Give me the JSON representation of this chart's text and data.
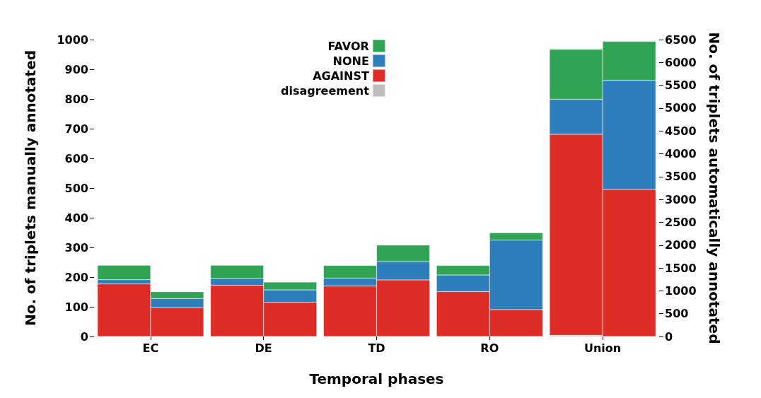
{
  "chart_data": {
    "type": "bar",
    "stacked": true,
    "xlabel": "Temporal phases",
    "ylabel": "No. of triplets manually annotated",
    "y2label": "No. of triplets automatically annotated",
    "categories": [
      "EC",
      "DE",
      "TD",
      "RO",
      "Union"
    ],
    "series": [
      {
        "name": "disagreement",
        "color": "#bdbdbd",
        "values": [
          null,
          null,
          null,
          null,
          4
        ]
      },
      {
        "name": "AGAINST",
        "color": "#de2d26",
        "values": [
          177,
          173,
          170,
          151,
          677
        ]
      },
      {
        "name": "NONE",
        "color": "#2e7ebc",
        "values": [
          14,
          22,
          27,
          56,
          118
        ]
      },
      {
        "name": "FAVOR",
        "color": "#31a354",
        "values": [
          49,
          45,
          42,
          32,
          168
        ]
      },
      {
        "color": "#de2d26",
        "axis": "y2",
        "values": [
          630,
          750,
          1240,
          590,
          3220
        ]
      },
      {
        "color": "#2e7ebc",
        "axis": "y2",
        "values": [
          200,
          270,
          400,
          1520,
          2390
        ]
      },
      {
        "color": "#31a354",
        "axis": "y2",
        "values": [
          150,
          170,
          360,
          160,
          850
        ]
      }
    ],
    "ylim": [
      0,
      1000
    ],
    "yticks": [
      0,
      100,
      200,
      300,
      400,
      500,
      600,
      700,
      800,
      900,
      1000
    ],
    "y2lim": [
      0,
      6500
    ],
    "y2ticks": [
      0,
      500,
      1000,
      1500,
      2000,
      2500,
      3000,
      3500,
      4000,
      4500,
      5000,
      5500,
      6000,
      6500
    ],
    "grid": false,
    "legend": "top"
  }
}
